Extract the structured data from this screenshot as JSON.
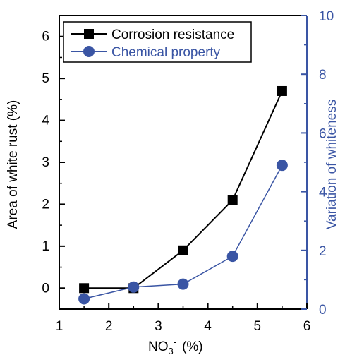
{
  "chart_data": {
    "type": "line",
    "xlabel": "NO3- (%)",
    "xlabel_main": "NO",
    "xlabel_sub": "3",
    "xlabel_sup": "-",
    "xlabel_unit": "(%)",
    "ylabel_left": "Area of white rust (%)",
    "ylabel_right": "Variation of whiteness",
    "xlim": [
      1,
      6
    ],
    "ylim_left": [
      -0.5,
      6.5
    ],
    "ylim_right": [
      0,
      10
    ],
    "xticks": [
      1,
      2,
      3,
      4,
      5,
      6
    ],
    "yticks_left": [
      0,
      1,
      2,
      3,
      4,
      5,
      6
    ],
    "yticks_right": [
      0,
      2,
      4,
      6,
      8,
      10
    ],
    "legend_position": "top-left",
    "colors": {
      "left_axis": "#000000",
      "right_axis": "#3a55a4",
      "series1": "#000000",
      "series2": "#3a55a4"
    },
    "series": [
      {
        "name": "Corrosion resistance",
        "axis": "left",
        "marker": "square",
        "x": [
          1.5,
          2.5,
          3.5,
          4.5,
          5.5
        ],
        "y": [
          0.0,
          0.0,
          0.9,
          2.1,
          4.7
        ]
      },
      {
        "name": "Chemical property",
        "axis": "right",
        "marker": "circle",
        "x": [
          1.5,
          2.5,
          3.5,
          4.5,
          5.5
        ],
        "y": [
          0.35,
          0.75,
          0.85,
          1.8,
          4.9
        ]
      }
    ]
  }
}
